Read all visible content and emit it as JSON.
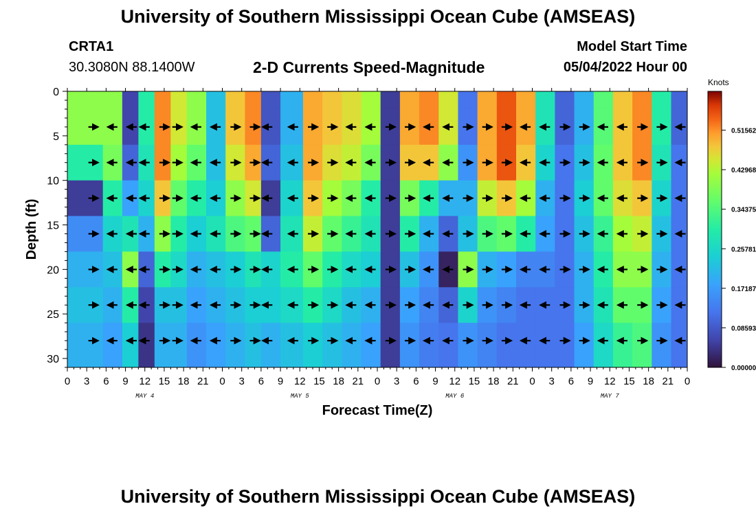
{
  "header": {
    "title": "University of Southern Mississippi Ocean Cube (AMSEAS)",
    "station": "CRTA1",
    "coords": "30.3080N  88.1400W",
    "subtitle": "2-D Currents Speed-Magnitude",
    "model_start_label": "Model Start Time",
    "model_start_value": "05/04/2022 Hour 00",
    "footer_title": "University of Southern Mississippi Ocean Cube (AMSEAS)"
  },
  "chart_data": {
    "type": "heatmap",
    "title": "2-D Currents Speed-Magnitude",
    "xlabel": "Forecast Time(Z)",
    "ylabel": "Depth (ft)",
    "xlim": [
      0,
      96
    ],
    "ylim": [
      31,
      0
    ],
    "x_ticks": [
      0,
      3,
      6,
      9,
      12,
      15,
      18,
      21,
      24,
      27,
      30,
      33,
      36,
      39,
      42,
      45,
      48,
      51,
      54,
      57,
      60,
      63,
      66,
      69,
      72,
      75,
      78,
      81,
      84,
      87,
      90,
      93,
      96
    ],
    "x_tick_labels": [
      "0",
      "3",
      "6",
      "9",
      "12",
      "15",
      "18",
      "21",
      "0",
      "3",
      "6",
      "9",
      "12",
      "15",
      "18",
      "21",
      "0",
      "3",
      "6",
      "9",
      "12",
      "15",
      "18",
      "21",
      "0",
      "3",
      "6",
      "9",
      "12",
      "15",
      "18",
      "21",
      "0"
    ],
    "y_ticks": [
      0,
      5,
      10,
      15,
      20,
      25,
      30
    ],
    "y_tick_labels": [
      "0",
      "5",
      "10",
      "15",
      "20",
      "25",
      "30"
    ],
    "day_labels": [
      {
        "x": 12,
        "text": "MAY 4"
      },
      {
        "x": 36,
        "text": "MAY 5"
      },
      {
        "x": 60,
        "text": "MAY 6"
      },
      {
        "x": 84,
        "text": "MAY 7"
      }
    ],
    "colorbar": {
      "unit": "Knots",
      "min": 0.0,
      "max": 0.6,
      "tick_values": [
        0.51562,
        0.42968,
        0.34375,
        0.25781,
        0.17187,
        0.08593,
        0.0
      ],
      "tick_labels": [
        "0.51562",
        "0.42968",
        "0.34375",
        "0.25781",
        "0.17187",
        "0.08593",
        "0.00000"
      ]
    },
    "depths": [
      0,
      4,
      8,
      12,
      16,
      20,
      24,
      28
    ],
    "vector_times": [
      4,
      7,
      10,
      12,
      15,
      17,
      20,
      23,
      26,
      29,
      31,
      35,
      38,
      41,
      44,
      47,
      50,
      53,
      56,
      59,
      62,
      65,
      68,
      71,
      74,
      77,
      80,
      83,
      86,
      89,
      92,
      95
    ],
    "speed_levels": [
      [
        0.4,
        0.4,
        0.06,
        0.3,
        0.52,
        0.45,
        0.4,
        0.22,
        0.48,
        0.52,
        0.08,
        0.2,
        0.5,
        0.48,
        0.46,
        0.42,
        0.05,
        0.5,
        0.52,
        0.45,
        0.12,
        0.5,
        0.55,
        0.5,
        0.28,
        0.1,
        0.2,
        0.35,
        0.48,
        0.52,
        0.3,
        0.1
      ],
      [
        0.4,
        0.4,
        0.06,
        0.3,
        0.52,
        0.45,
        0.4,
        0.22,
        0.48,
        0.52,
        0.08,
        0.2,
        0.5,
        0.48,
        0.46,
        0.42,
        0.05,
        0.5,
        0.52,
        0.45,
        0.12,
        0.5,
        0.55,
        0.5,
        0.28,
        0.1,
        0.2,
        0.35,
        0.48,
        0.52,
        0.3,
        0.1
      ],
      [
        0.3,
        0.38,
        0.1,
        0.28,
        0.52,
        0.42,
        0.36,
        0.22,
        0.45,
        0.5,
        0.1,
        0.22,
        0.5,
        0.46,
        0.44,
        0.38,
        0.05,
        0.48,
        0.48,
        0.4,
        0.16,
        0.5,
        0.55,
        0.48,
        0.25,
        0.12,
        0.22,
        0.36,
        0.48,
        0.52,
        0.28,
        0.12
      ],
      [
        0.05,
        0.3,
        0.18,
        0.25,
        0.48,
        0.36,
        0.3,
        0.24,
        0.4,
        0.45,
        0.05,
        0.25,
        0.48,
        0.42,
        0.38,
        0.3,
        0.05,
        0.38,
        0.3,
        0.2,
        0.2,
        0.44,
        0.48,
        0.42,
        0.2,
        0.12,
        0.24,
        0.36,
        0.46,
        0.48,
        0.25,
        0.12
      ],
      [
        0.15,
        0.25,
        0.28,
        0.2,
        0.4,
        0.3,
        0.24,
        0.28,
        0.34,
        0.36,
        0.1,
        0.28,
        0.44,
        0.36,
        0.32,
        0.28,
        0.05,
        0.3,
        0.2,
        0.1,
        0.22,
        0.34,
        0.36,
        0.3,
        0.18,
        0.12,
        0.22,
        0.32,
        0.42,
        0.44,
        0.22,
        0.12
      ],
      [
        0.2,
        0.22,
        0.4,
        0.1,
        0.3,
        0.26,
        0.2,
        0.22,
        0.24,
        0.28,
        0.25,
        0.3,
        0.36,
        0.3,
        0.26,
        0.24,
        0.05,
        0.22,
        0.16,
        0.02,
        0.4,
        0.2,
        0.18,
        0.14,
        0.14,
        0.12,
        0.2,
        0.3,
        0.4,
        0.4,
        0.2,
        0.12
      ],
      [
        0.22,
        0.2,
        0.3,
        0.06,
        0.22,
        0.22,
        0.18,
        0.2,
        0.22,
        0.24,
        0.24,
        0.26,
        0.3,
        0.26,
        0.22,
        0.2,
        0.05,
        0.18,
        0.14,
        0.1,
        0.25,
        0.16,
        0.14,
        0.12,
        0.12,
        0.12,
        0.2,
        0.28,
        0.36,
        0.36,
        0.18,
        0.12
      ],
      [
        0.2,
        0.18,
        0.24,
        0.04,
        0.2,
        0.2,
        0.16,
        0.18,
        0.2,
        0.22,
        0.2,
        0.22,
        0.24,
        0.22,
        0.2,
        0.18,
        0.05,
        0.16,
        0.13,
        0.12,
        0.16,
        0.14,
        0.12,
        0.12,
        0.12,
        0.12,
        0.18,
        0.26,
        0.32,
        0.34,
        0.16,
        0.12
      ]
    ]
  }
}
